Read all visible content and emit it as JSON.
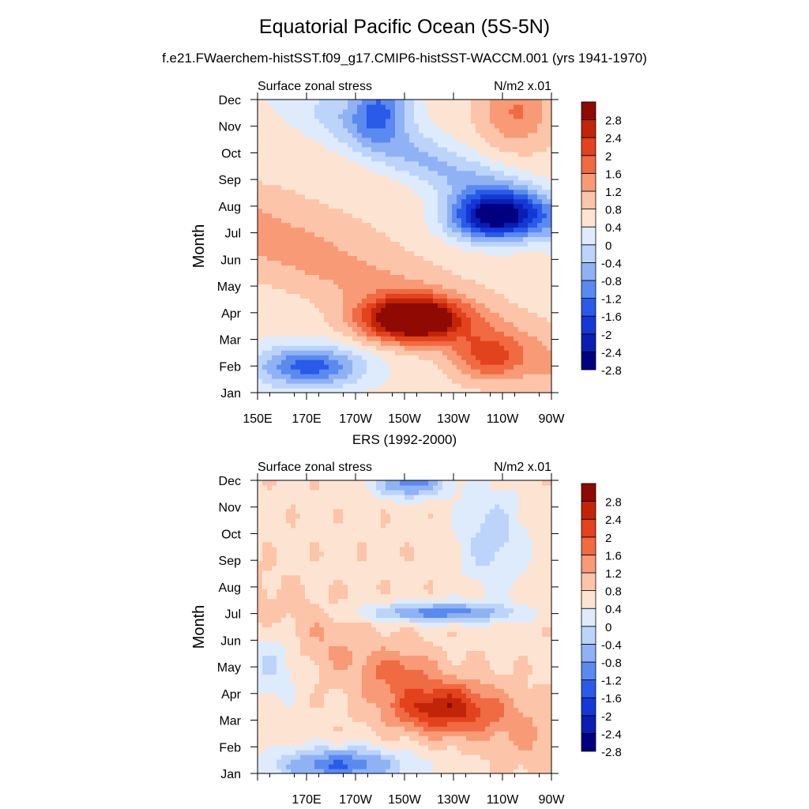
{
  "figure": {
    "title": "Equatorial Pacific Ocean (5S-5N)",
    "subtitle": "f.e21.FWaerchem-histSST.f09_g17.CMIP6-histSST-WACCM.001 (yrs 1941-1970)"
  },
  "chart_data": [
    {
      "type": "heatmap",
      "panel_title": "",
      "left_label": "Surface zonal stress",
      "right_label": "N/m2 x.01",
      "ylabel": "Month",
      "xticks": [
        "150E",
        "170E",
        "170W",
        "150W",
        "130W",
        "110W",
        "90W"
      ],
      "yticks": [
        "Jan",
        "Feb",
        "Mar",
        "Apr",
        "May",
        "Jun",
        "Jul",
        "Aug",
        "Sep",
        "Oct",
        "Nov",
        "Dec"
      ],
      "xlim": [
        "150E",
        "90W"
      ],
      "levels": [
        -2.8,
        -2.4,
        -2,
        -1.6,
        -1.2,
        -0.8,
        -0.4,
        0,
        0.4,
        0.8,
        1.2,
        1.6,
        2,
        2.4,
        2.8
      ],
      "colorbar_labels": [
        "2.8",
        "2.4",
        "2",
        "1.6",
        "1.2",
        "0.8",
        "0.4",
        "0",
        "-0.4",
        "-0.8",
        "-1.2",
        "-1.6",
        "-2",
        "-2.4",
        "-2.8"
      ]
    },
    {
      "type": "heatmap",
      "panel_title": "ERS (1992-2000)",
      "left_label": "Surface zonal stress",
      "right_label": "N/m2 x.01",
      "ylabel": "Month",
      "xticks": [
        "",
        "170E",
        "170W",
        "150W",
        "130W",
        "110W",
        "90W"
      ],
      "yticks": [
        "Jan",
        "Feb",
        "Mar",
        "Apr",
        "May",
        "Jun",
        "Jul",
        "Aug",
        "Sep",
        "Oct",
        "Nov",
        "Dec"
      ],
      "xlim": [
        "150E",
        "90W"
      ],
      "levels": [
        -2.8,
        -2.4,
        -2,
        -1.6,
        -1.2,
        -0.8,
        -0.4,
        0,
        0.4,
        0.8,
        1.2,
        1.6,
        2,
        2.4,
        2.8
      ],
      "colorbar_labels": [
        "2.8",
        "2.4",
        "2",
        "1.6",
        "1.2",
        "0.8",
        "0.4",
        "0",
        "-0.4",
        "-0.8",
        "-1.2",
        "-1.6",
        "-2",
        "-2.4",
        "-2.8"
      ]
    }
  ],
  "colors": [
    "#000080",
    "#0a1eb4",
    "#1437d7",
    "#2a5ae8",
    "#5a8af0",
    "#8fb2f5",
    "#bcd4fa",
    "#deebfd",
    "#fde4d2",
    "#fcc4a8",
    "#f89a76",
    "#f06a42",
    "#e2421c",
    "#c22408",
    "#8e0a02"
  ]
}
